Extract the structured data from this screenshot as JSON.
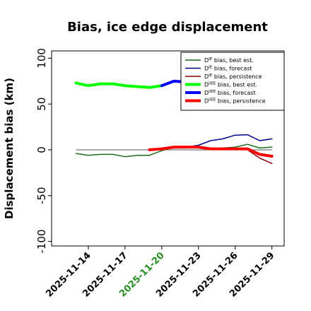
{
  "chart_data": {
    "type": "line",
    "title": "Bias, ice edge displacement",
    "xlabel": "",
    "ylabel": "Displacement bias (km)",
    "ylim": [
      -105,
      108
    ],
    "xlim": [
      "2025-11-11",
      "2025-11-30"
    ],
    "yticks": [
      -100,
      -50,
      0,
      50,
      100
    ],
    "xticks": [
      "2025-11-14",
      "2025-11-17",
      "2025-11-20",
      "2025-11-23",
      "2025-11-26",
      "2025-11-29"
    ],
    "highlight_tick": "2025-11-20",
    "highlight_color": "#228b22",
    "grid": false,
    "legend_position": "top-right",
    "zero_line": true,
    "series": [
      {
        "name": "D^IE bias, best est.",
        "color": "#1a6e1a",
        "width": 1.5,
        "points": [
          [
            "2025-11-13",
            -4
          ],
          [
            "2025-11-14",
            -6
          ],
          [
            "2025-11-15",
            -5
          ],
          [
            "2025-11-16",
            -5
          ],
          [
            "2025-11-17",
            -7.5
          ],
          [
            "2025-11-18",
            -6
          ],
          [
            "2025-11-19",
            -6
          ],
          [
            "2025-11-20",
            -1
          ],
          [
            "2025-11-21",
            3
          ],
          [
            "2025-11-22",
            3
          ],
          [
            "2025-11-23",
            2
          ],
          [
            "2025-11-24",
            1
          ],
          [
            "2025-11-25",
            2
          ],
          [
            "2025-11-26",
            3
          ],
          [
            "2025-11-27",
            6
          ],
          [
            "2025-11-28",
            2
          ],
          [
            "2025-11-29",
            3
          ]
        ]
      },
      {
        "name": "D^IE bias, forecast",
        "color": "#00008b",
        "width": 1.5,
        "points": [
          [
            "2025-11-19",
            0
          ],
          [
            "2025-11-20",
            0
          ],
          [
            "2025-11-21",
            3
          ],
          [
            "2025-11-22",
            3
          ],
          [
            "2025-11-23",
            5
          ],
          [
            "2025-11-24",
            10
          ],
          [
            "2025-11-25",
            12
          ],
          [
            "2025-11-26",
            16
          ],
          [
            "2025-11-27",
            16.5
          ],
          [
            "2025-11-28",
            10
          ],
          [
            "2025-11-29",
            12
          ]
        ]
      },
      {
        "name": "D^IE bias, persistence",
        "color": "#8b0000",
        "width": 1.5,
        "points": [
          [
            "2025-11-19",
            0
          ],
          [
            "2025-11-20",
            1
          ],
          [
            "2025-11-21",
            2
          ],
          [
            "2025-11-22",
            2
          ],
          [
            "2025-11-23",
            3
          ],
          [
            "2025-11-24",
            1
          ],
          [
            "2025-11-25",
            1
          ],
          [
            "2025-11-26",
            1
          ],
          [
            "2025-11-27",
            0
          ],
          [
            "2025-11-28",
            -9
          ],
          [
            "2025-11-29",
            -15
          ]
        ]
      },
      {
        "name": "D^IIEE bias, best est.",
        "color": "#00ff00",
        "width": 4,
        "points": [
          [
            "2025-11-13",
            73
          ],
          [
            "2025-11-14",
            70
          ],
          [
            "2025-11-15",
            72
          ],
          [
            "2025-11-16",
            72
          ],
          [
            "2025-11-17",
            70
          ],
          [
            "2025-11-18",
            69
          ],
          [
            "2025-11-19",
            68
          ],
          [
            "2025-11-20",
            70
          ]
        ]
      },
      {
        "name": "D^IIEE bias, forecast",
        "color": "#0000ff",
        "width": 4,
        "points": [
          [
            "2025-11-20",
            70
          ],
          [
            "2025-11-21",
            75
          ],
          [
            "2025-11-22",
            74
          ],
          [
            "2025-11-23",
            74
          ]
        ]
      },
      {
        "name": "D^IIEE bias, persistence",
        "color": "#ff0000",
        "width": 4,
        "points": [
          [
            "2025-11-19",
            0
          ],
          [
            "2025-11-20",
            1
          ],
          [
            "2025-11-21",
            3
          ],
          [
            "2025-11-22",
            3
          ],
          [
            "2025-11-23",
            3
          ],
          [
            "2025-11-24",
            1
          ],
          [
            "2025-11-25",
            1
          ],
          [
            "2025-11-26",
            1
          ],
          [
            "2025-11-27",
            1
          ],
          [
            "2025-11-28",
            -5
          ],
          [
            "2025-11-29",
            -7
          ]
        ]
      }
    ],
    "legend": [
      {
        "base": "D",
        "sup": "IE",
        "rest": " bias, best est.",
        "color": "#1a6e1a",
        "width": 1.5
      },
      {
        "base": "D",
        "sup": "IE",
        "rest": " bias, forecast",
        "color": "#00008b",
        "width": 1.5
      },
      {
        "base": "D",
        "sup": "IE",
        "rest": " bias, persistence",
        "color": "#8b0000",
        "width": 1.5
      },
      {
        "base": "D",
        "sup": "IIEE",
        "rest": " bias, best est.",
        "color": "#00ff00",
        "width": 4
      },
      {
        "base": "D",
        "sup": "IIEE",
        "rest": " bias, forecast",
        "color": "#0000ff",
        "width": 4
      },
      {
        "base": "D",
        "sup": "IIEE",
        "rest": " bias, persistence",
        "color": "#ff0000",
        "width": 4
      }
    ]
  }
}
